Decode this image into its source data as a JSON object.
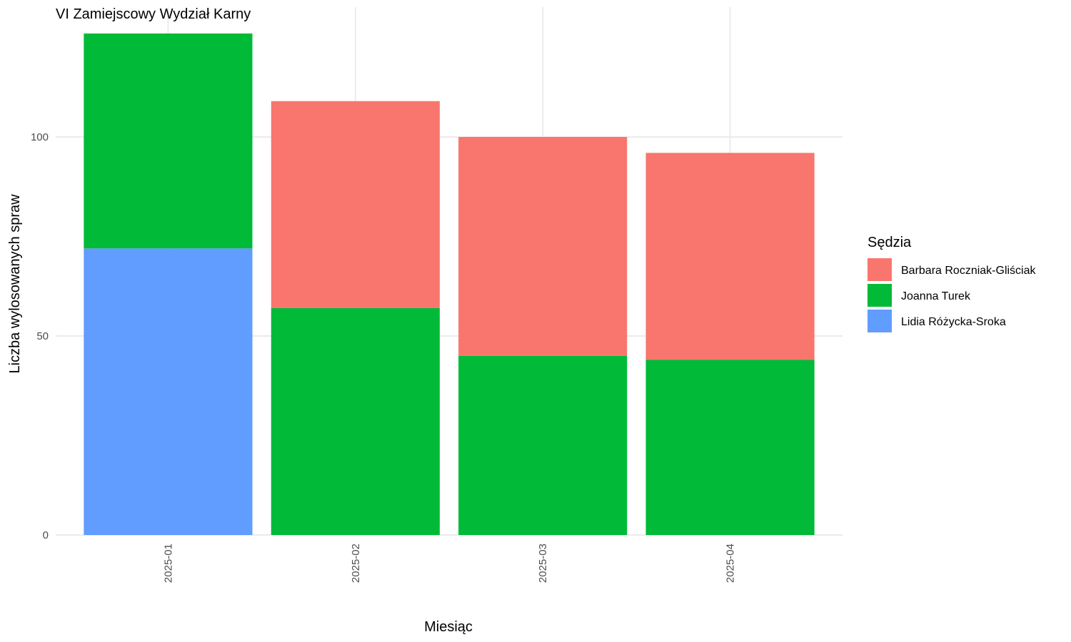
{
  "chart_data": {
    "type": "bar",
    "stacked": true,
    "title": "VI Zamiejscowy Wydział Karny",
    "xlabel": "Miesiąc",
    "ylabel": "Liczba wylosowanych spraw",
    "ylim": [
      0,
      126
    ],
    "yticks": [
      0,
      50,
      100
    ],
    "categories": [
      "2025-01",
      "2025-02",
      "2025-03",
      "2025-04"
    ],
    "legend_title": "Sędzia",
    "legend_position": "right",
    "grid": true,
    "stack_order_bottom_to_top": [
      "Lidia Różycka-Sroka",
      "Joanna Turek",
      "Barbara Roczniak-Gliściak"
    ],
    "series": [
      {
        "name": "Barbara Roczniak-Gliściak",
        "color": "#F8766D",
        "values": [
          0,
          52,
          55,
          52
        ]
      },
      {
        "name": "Joanna Turek",
        "color": "#00BA38",
        "values": [
          54,
          57,
          45,
          44
        ]
      },
      {
        "name": "Lidia Różycka-Sroka",
        "color": "#619CFF",
        "values": [
          72,
          0,
          0,
          0
        ]
      }
    ]
  }
}
